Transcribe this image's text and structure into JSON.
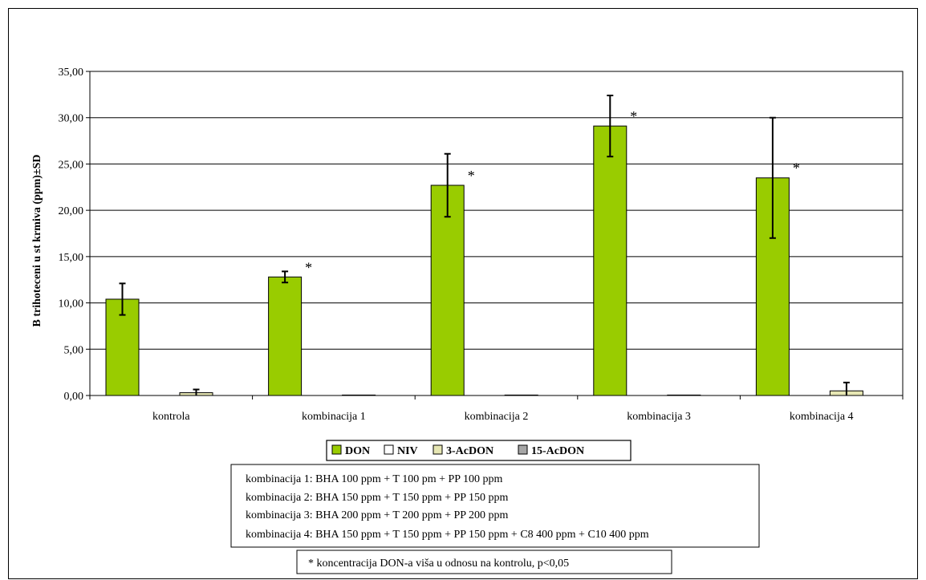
{
  "chart_data": {
    "type": "bar",
    "ylabel": "B trihoteceni u st krmiva (ppm)±SD",
    "xlabel": "",
    "ylim": [
      0,
      35
    ],
    "ytick_labels": [
      "0,00",
      "5,00",
      "10,00",
      "15,00",
      "20,00",
      "25,00",
      "30,00",
      "35,00"
    ],
    "grid": true,
    "legend_position": "bottom",
    "categories": [
      "kontrola",
      "kombinacija 1",
      "kombinacija 2",
      "kombinacija 3",
      "kombinacija 4"
    ],
    "series": [
      {
        "name": "DON",
        "values": [
          10.4,
          12.8,
          22.7,
          29.1,
          23.5
        ],
        "errors": [
          1.7,
          0.6,
          3.4,
          3.3,
          6.5
        ],
        "color": "#99cc00"
      },
      {
        "name": "NIV",
        "values": [
          0,
          0,
          0,
          0,
          0
        ],
        "errors": [
          0,
          0,
          0,
          0,
          0
        ],
        "color": "#ffffff"
      },
      {
        "name": "3-AcDON",
        "values": [
          0.3,
          0.05,
          0.05,
          0.05,
          0.5
        ],
        "errors": [
          0.35,
          0,
          0,
          0,
          0.9
        ],
        "color": "#e6e6b3"
      },
      {
        "name": "15-AcDON",
        "values": [
          0,
          0,
          0,
          0,
          0
        ],
        "errors": [
          0,
          0,
          0,
          0,
          0
        ],
        "color": "#a6a6a6"
      }
    ],
    "significance_marker": "*",
    "significant": [
      false,
      true,
      true,
      true,
      true
    ]
  },
  "notes": [
    "kombinacija 1: BHA 100 ppm + T 100 pm + PP 100 ppm",
    "kombinacija 2: BHA 150 ppm + T 150 ppm + PP 150 ppm",
    "kombinacija 3: BHA 200 ppm + T 200 ppm + PP 200 ppm",
    "kombinacija 4: BHA 150 ppm + T 150 ppm + PP 150 ppm + C8 400 ppm + C10 400 ppm"
  ],
  "footnote": "* koncentracija DON-a viša u odnosu na kontrolu, p<0,05"
}
